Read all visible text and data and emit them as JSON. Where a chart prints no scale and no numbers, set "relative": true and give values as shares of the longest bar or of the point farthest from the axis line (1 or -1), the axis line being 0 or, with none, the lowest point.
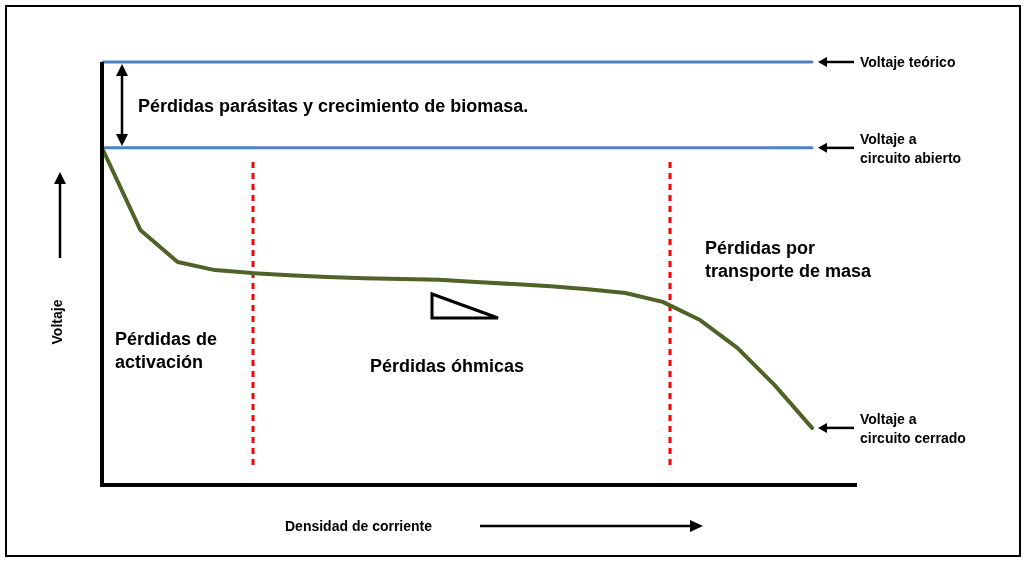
{
  "chart_data": {
    "type": "line",
    "relative": true,
    "xlabel": "Densidad de corriente",
    "ylabel": "Voltaje",
    "categories": [
      null,
      null,
      null,
      null,
      null,
      null,
      null,
      null,
      null,
      null,
      null,
      null,
      null,
      null,
      null,
      null,
      null,
      null,
      null,
      null
    ],
    "series": [
      {
        "color": "#4f81bd",
        "values": [
          1,
          1,
          1,
          1,
          1,
          1,
          1,
          1,
          1,
          1,
          1,
          1,
          1,
          1,
          1,
          1,
          1,
          1,
          1,
          1
        ]
      },
      {
        "color": "#4f81bd",
        "values": [
          0.797,
          0.797,
          0.797,
          0.797,
          0.797,
          0.797,
          0.797,
          0.797,
          0.797,
          0.797,
          0.797,
          0.797,
          0.797,
          0.797,
          0.797,
          0.797,
          0.797,
          0.797,
          0.797,
          0.797
        ]
      },
      {
        "color": "#4f6228",
        "values": [
          0.792,
          0.603,
          0.527,
          0.508,
          0.501,
          0.496,
          0.492,
          0.489,
          0.487,
          0.485,
          0.48,
          0.475,
          0.47,
          0.463,
          0.454,
          0.433,
          0.39,
          0.324,
          0.236,
          0.135
        ]
      }
    ],
    "annotations": [
      "Pérdidas parásitas y crecimiento de biomasa.",
      "Pérdidas de activación",
      "Pérdidas óhmicas",
      "Pérdidas por transporte de masa",
      "Voltaje teórico",
      "Voltaje a circuito abierto",
      "Voltaje a circuito cerrado"
    ]
  }
}
